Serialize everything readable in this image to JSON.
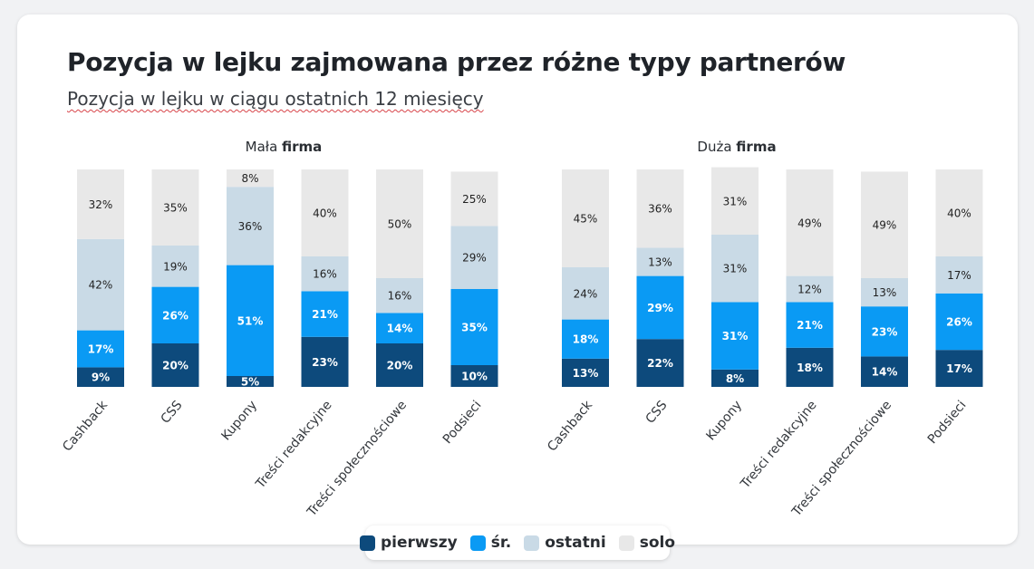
{
  "title": "Pozycja w lejku zajmowana przez różne typy partnerów",
  "subtitle": "Pozycja w lejku w ciągu ostatnich 12 miesięcy",
  "colors": {
    "pierwszy": "#0d4a7c",
    "sr": "#0a9af4",
    "ostatni": "#c9dae6",
    "solo": "#e8e8e8"
  },
  "legend": [
    {
      "key": "pierwszy",
      "label": "pierwszy"
    },
    {
      "key": "sr",
      "label": "śr."
    },
    {
      "key": "ostatni",
      "label": "ostatni"
    },
    {
      "key": "solo",
      "label": "solo"
    }
  ],
  "chart_data": [
    {
      "type": "bar",
      "stacked": true,
      "title_prefix": "Mała",
      "title_bold": "firma",
      "categories": [
        "Cashback",
        "CSS",
        "Kupony",
        "Treści redakcyjne",
        "Treści społecznościowe",
        "Podsieci"
      ],
      "series": [
        {
          "name": "pierwszy",
          "values": [
            9,
            20,
            5,
            23,
            20,
            10
          ]
        },
        {
          "name": "śr.",
          "values": [
            17,
            26,
            51,
            21,
            14,
            35
          ]
        },
        {
          "name": "ostatni",
          "values": [
            42,
            19,
            36,
            16,
            16,
            29
          ]
        },
        {
          "name": "solo",
          "values": [
            32,
            35,
            8,
            40,
            50,
            25
          ]
        }
      ],
      "ylim": [
        0,
        100
      ],
      "value_suffix": "%"
    },
    {
      "type": "bar",
      "stacked": true,
      "title_prefix": "Duża",
      "title_bold": "firma",
      "categories": [
        "Cashback",
        "CSS",
        "Kupony",
        "Treści redakcyjne",
        "Treści społecznościowe",
        "Podsieci"
      ],
      "series": [
        {
          "name": "pierwszy",
          "values": [
            13,
            22,
            8,
            18,
            14,
            17
          ]
        },
        {
          "name": "śr.",
          "values": [
            18,
            29,
            31,
            21,
            23,
            26
          ]
        },
        {
          "name": "ostatni",
          "values": [
            24,
            13,
            31,
            12,
            13,
            17
          ]
        },
        {
          "name": "solo",
          "values": [
            45,
            36,
            31,
            49,
            49,
            40
          ]
        }
      ],
      "ylim": [
        0,
        100
      ],
      "value_suffix": "%"
    }
  ]
}
